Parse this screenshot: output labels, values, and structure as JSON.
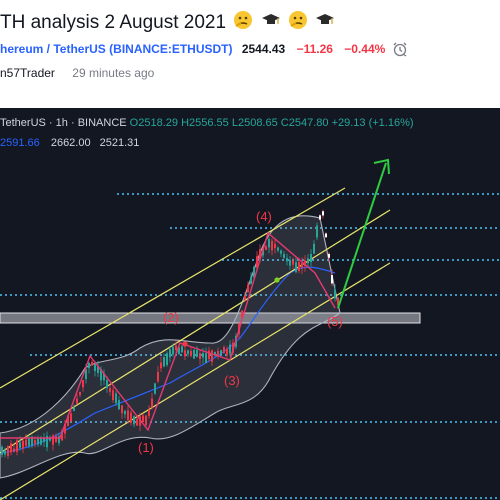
{
  "idea": {
    "title": "TH analysis 2 August 2021",
    "emoji_sequence": [
      "thinking-face-icon",
      "graduation-cap-icon",
      "thinking-face-icon",
      "graduation-cap-icon"
    ]
  },
  "symbol": {
    "name": "hereum / TetherUS",
    "exchange": "(BINANCE:ETHUSDT)",
    "price": "2544.43",
    "change": "−11.26",
    "change_pct": "−0.44%",
    "colors": {
      "link": "#2962ff",
      "down": "#f23645"
    }
  },
  "author": {
    "name": "n57Trader",
    "time": "29 minutes ago"
  },
  "chart": {
    "legend": {
      "pair": "TetherUS",
      "interval": "1h",
      "exchange": "BINANCE",
      "open": "O2518.29",
      "high": "H2556.55",
      "low": "L2508.65",
      "close": "C2547.80",
      "change": "+29.13 (+1.16%)"
    },
    "indicator": {
      "v1": "2591.66",
      "v2": "2662.00",
      "v3": "2521.31"
    },
    "wave_labels": [
      "(1)",
      "(2)",
      "(3)",
      "(4)",
      "(5)"
    ],
    "colors": {
      "background": "#131722",
      "up": "#26a69a",
      "down": "#f23645",
      "channel": "#e8e36a",
      "dotted": "#4fc3f7",
      "arrow": "#2ecc40",
      "wave_line": "#e5396f",
      "bands": "#b0b3bd"
    }
  }
}
